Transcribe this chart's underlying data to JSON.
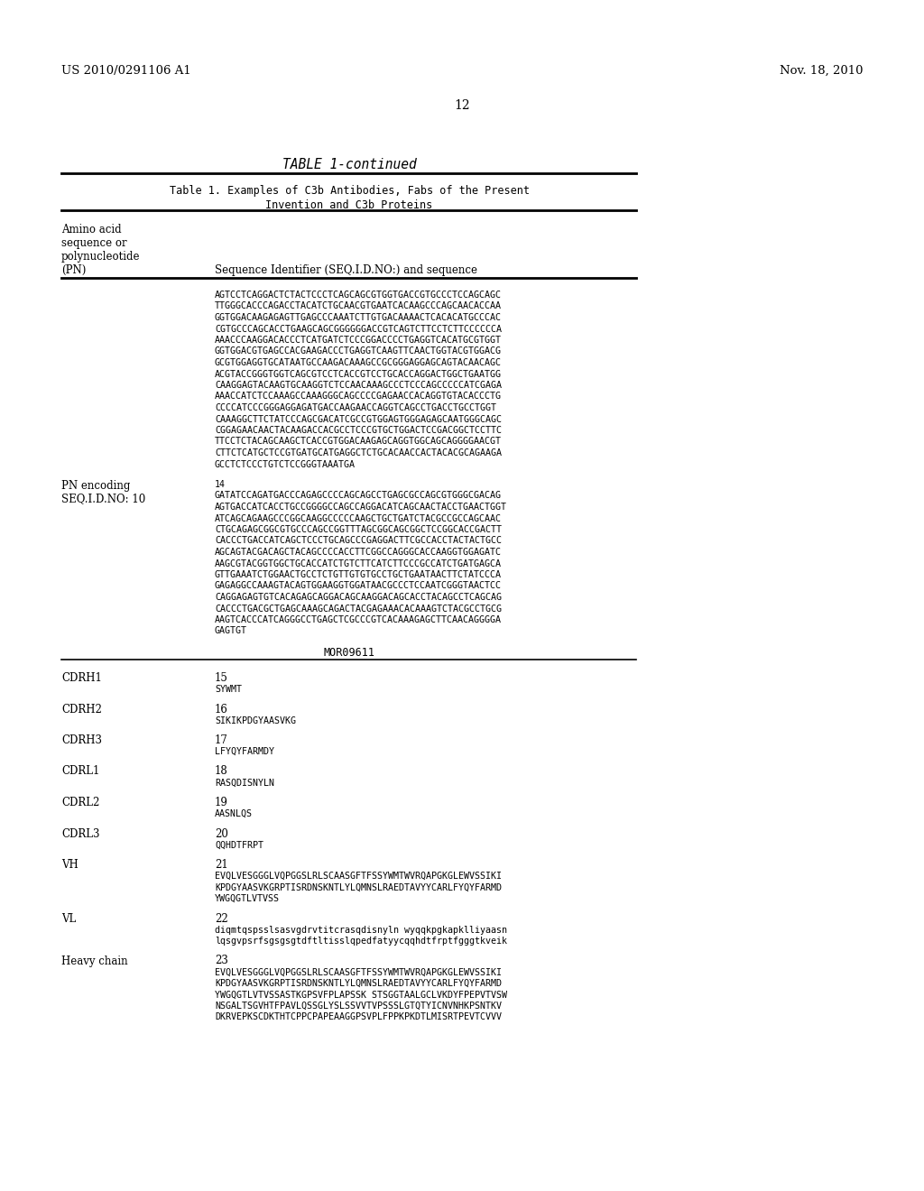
{
  "background_color": "#ffffff",
  "header_left": "US 2010/0291106 A1",
  "header_right": "Nov. 18, 2010",
  "page_number": "12",
  "table_title": "TABLE 1-continued",
  "table_subtitle1": "Table 1. Examples of C3b Antibodies, Fabs of the Present",
  "table_subtitle2": "Invention and C3b Proteins",
  "col2_header": "Sequence Identifier (SEQ.I.D.NO:) and sequence",
  "seq1_lines": [
    "AGTCCTCAGGACTCTACTCCCTCAGCAGCGTGGTGACCGTGCCCTCCAGCAGC",
    "TTGGGCACCCAGACCTACATCTGCAACGTGAATCACAAGCCCAGCAACACCAA",
    "GGTGGACAAGAGAGTTGAGCCCAAATCTTGTGACAAAACTCACACATGCCCAC",
    "CGTGCCCAGCACCTGAAGCAGCGGGGGGACCGTCAGTCTTCCTCTTCCCCCCA",
    "AAACCCAAGGACACCCTCATGATCTCCCGGACCCCTGAGGTCACATGCGTGGT",
    "GGTGGACGTGAGCCACGAAGACCCTGAGGTCAAGTTCAACTGGTACGTGGACG",
    "GCGTGGAGGTGCATAATGCCAAGACAAAGCCGCGGGAGGAGCAGTACAACAGC",
    "ACGTACCGGGTGGTCAGCGTCCTCACCGTCCTGCACCAGGACTGGCTGAATGG",
    "CAAGGAGTACAAGTGCAAGGTCTCCAACAAAGCCCTCCCAGCCCCCATCGAGA",
    "AAACCATCTCCAAAGCCAAAGGGCAGCCCCGAGAACCACAGGTGTACACCCTG",
    "CCCCATCCCGGGAGGAGATGACCAAGAACCAGGTCAGCCTGACCTGCCTGGT",
    "CAAAGGCTTCTATCCCAGCGACATCGCCGTGGAGTGGGAGAGCAATGGGCAGC",
    "CGGAGAACAACTACAAGACCACGCCTCCCGTGCTGGACTCCGACGGCTCCTTC",
    "TTCCTCTACAGCAAGCTCACCGTGGACAAGAGCAGGTGGCAGCAGGGGAACGT",
    "CTTCTCATGCTCCGTGATGCATGAGGCTCTGCACAACCACTACACGCAGAAGA",
    "GCCTCTCCCTGTCTCCGGGTAAATGA"
  ],
  "pn_label1": "PN encoding",
  "pn_label2": "SEQ.I.D.NO: 10",
  "seq2_lines": [
    "14",
    "GATATCCAGATGACCCAGAGCCCCAGCAGCCTGAGCGCCAGCGTGGGCGACAG",
    "AGTGACCATCACCTGCCGGGGCCAGCCAGGACATCAGCAACTACCTGAACTGGT",
    "ATCAGCAGAAGCCCGGCAAGGCCCCCAAGCTGCTGATCTACGCCGCCAGCAAC",
    "CTGCAGAGCGGCGTGCCCAGCCGGTTTAGCGGCAGCGGCTCCGGCACCGACTT",
    "CACCCTGACCATCAGCTCCCTGCAGCCCGAGGACTTCGCCACCTACTACTGCC",
    "AGCAGTACGACAGCTACAGCCCCACCTTCGGCCAGGGCACCAAGGTGGAGATC",
    "AAGCGTACGGTGGCTGCACCATCTGTCTTCATCTTCCCGCCATCTGATGAGCA",
    "GTTGAAATCTGGAACTGCCTCTGTTGTGTGCCTGCTGAATAACTTCTATCCCA",
    "GAGAGGCCAAAGTACAGTGGAAGGTGGATAACGCCCTCCAATCGGGTAACTCC",
    "CAGGAGAGTGTCACAGAGCAGGACAGCAAGGACAGCACCTACAGCCTCAGCAG",
    "CACCCTGACGCTGAGCAAAGCAGACTACGAGAAACACAAAGTCTACGCCTGCG",
    "AAGTCACCCATCAGGGCCTGAGCTCGCCCGTCACAAAGAGCTTCAACAGGGGA",
    "GAGTGT"
  ],
  "mor_label": "MOR09611",
  "mor_rows": [
    {
      "label": "CDRH1",
      "id": "15",
      "seq": [
        "SYWMT"
      ]
    },
    {
      "label": "CDRH2",
      "id": "16",
      "seq": [
        "SIKIKPDGYAASVKG"
      ]
    },
    {
      "label": "CDRH3",
      "id": "17",
      "seq": [
        "LFYQYFARMDY"
      ]
    },
    {
      "label": "CDRL1",
      "id": "18",
      "seq": [
        "RASQDISNYLN"
      ]
    },
    {
      "label": "CDRL2",
      "id": "19",
      "seq": [
        "AASNLQS"
      ]
    },
    {
      "label": "CDRL3",
      "id": "20",
      "seq": [
        "QQHDTFRPT"
      ]
    },
    {
      "label": "VH",
      "id": "21",
      "seq": [
        "EVQLVESGGGLVQPGGSLRLSCAASGFTFSSYWMTWVRQAPGKGLEWVSSIKI",
        "KPDGYAASVKGRPTISRDNSKNTLYLQMNSLRAEDTAVYYCARLFYQYFARMD",
        "YWGQGTLVTVSS"
      ]
    },
    {
      "label": "VL",
      "id": "22",
      "seq": [
        "diqmtqspsslsasvgdrvtitcrasqdisnyln wyqqkpgkapklliyaasn",
        "lqsgvpsrfsgsgsgtdftltisslqpedfatyycqqhdtfrptfgggtkveik"
      ]
    },
    {
      "label": "Heavy chain",
      "id": "23",
      "seq": [
        "EVQLVESGGGLVQPGGSLRLSCAASGFTFSSYWMTWVRQAPGKGLEWVSSIKI",
        "KPDGYAASVKGRPTISRDNSKNTLYLQMNSLRAEDTAVYYCARLFYQYFARMD",
        "YWGQGTLVTVSSASTKGPSVFPLAPSSK STSGGTAALGCLVKDYFPEPVTVSW",
        "NSGALTSGVHTFPAVLQSSGLYSLSSVVTVPSSSLGTQTYICNVNHKPSNTKV",
        "DKRVEPKSCDKTHTCPPCPAPEAAGGPSVPLFPPKPKDTLMISRTPEVTCVVV"
      ]
    }
  ]
}
